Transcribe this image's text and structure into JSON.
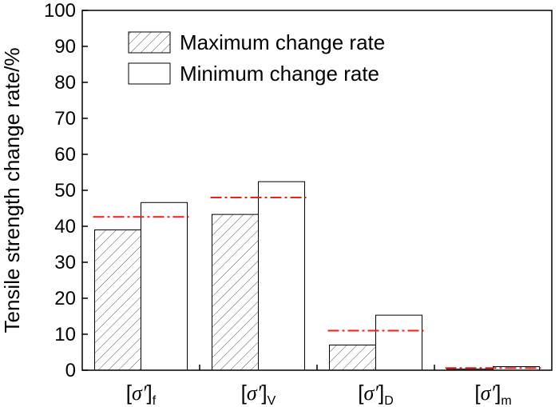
{
  "chart_data": {
    "type": "bar",
    "title": "",
    "xlabel": "",
    "ylabel": "Tensile strength change rate/%",
    "ylim": [
      0,
      100
    ],
    "yticks": [
      "0",
      "10",
      "20",
      "30",
      "40",
      "50",
      "60",
      "70",
      "80",
      "90",
      "100"
    ],
    "categories": [
      {
        "prefix": "[",
        "symbol": "σ′",
        "suffix": "]",
        "sub": "f"
      },
      {
        "prefix": "[",
        "symbol": "σ′",
        "suffix": "]",
        "sub": "V"
      },
      {
        "prefix": "[",
        "symbol": "σ′",
        "suffix": "]",
        "sub": "D"
      },
      {
        "prefix": "[",
        "symbol": "σ′",
        "suffix": "]",
        "sub": "m"
      }
    ],
    "series": [
      {
        "name": "Maximum change rate",
        "pattern": "hatched",
        "values": [
          39.0,
          43.3,
          7.0,
          0.3
        ]
      },
      {
        "name": "Minimum change rate",
        "pattern": "plain",
        "values": [
          46.6,
          52.4,
          15.3,
          1.0
        ]
      }
    ],
    "reference_lines": {
      "style": "dash-dot",
      "color": "#e8231c",
      "values": [
        42.6,
        48.0,
        11.0,
        0.6
      ]
    },
    "legend_position": "top-left"
  }
}
